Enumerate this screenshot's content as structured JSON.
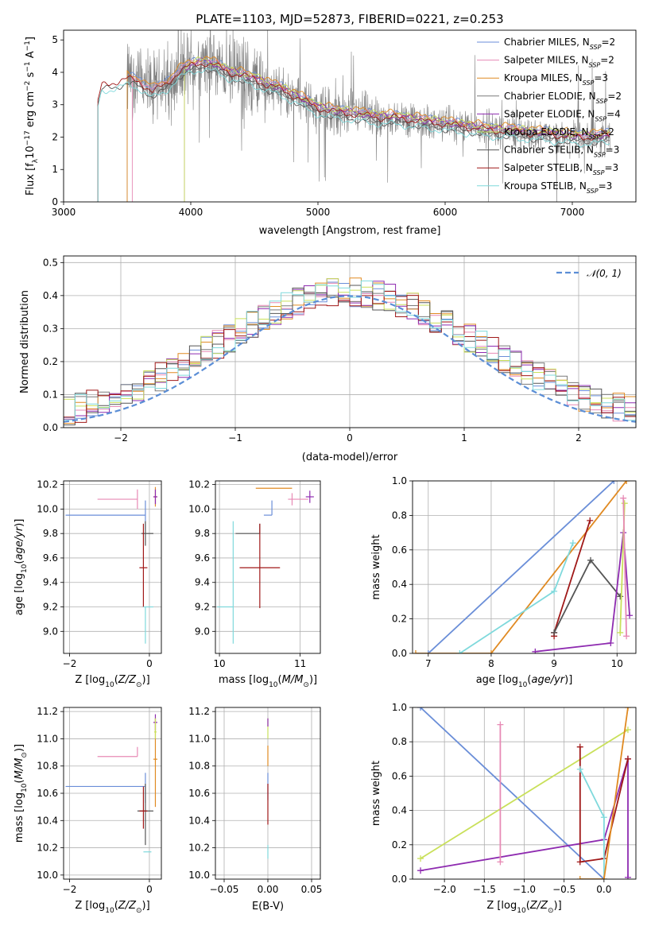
{
  "figure_title": "PLATE=1103, MJD=52873, FIBERID=0221, z=0.253",
  "colors": {
    "chabrier_miles": "#6a8ed8",
    "salpeter_miles": "#e78ab5",
    "kroupa_miles": "#e08a22",
    "chabrier_elodie": "#7a7a7a",
    "salpeter_elodie": "#8e2bb0",
    "kroupa_elodie": "#c9e05a",
    "chabrier_stelib": "#555555",
    "salpeter_stelib": "#a01818",
    "kroupa_stelib": "#7fd9dc",
    "data": "#808080",
    "normal_curve": "#5b8ed6"
  },
  "chart_data": [
    {
      "id": "spectrum",
      "type": "line",
      "xlabel": "wavelength [Angstrom, rest frame]",
      "ylabel": "Flux [f_λ 10^-17 erg cm^-2 s^-1 A^-1]",
      "xlim": [
        3000,
        7500
      ],
      "ylim": [
        0,
        5.3
      ],
      "xticks": [
        3000,
        4000,
        5000,
        6000,
        7000
      ],
      "yticks": [
        0,
        1,
        2,
        3,
        4,
        5
      ],
      "grid": false,
      "legend_position": "top-right",
      "legend": [
        {
          "label": "Chabrier MILES, N",
          "sub": "SSP",
          "suffix": "=2",
          "color_key": "chabrier_miles"
        },
        {
          "label": "Salpeter MILES, N",
          "sub": "SSP",
          "suffix": "=2",
          "color_key": "salpeter_miles"
        },
        {
          "label": "Kroupa MILES, N",
          "sub": "SSP",
          "suffix": "=3",
          "color_key": "kroupa_miles"
        },
        {
          "label": "Chabrier ELODIE, N",
          "sub": "SSP",
          "suffix": "=2",
          "color_key": "chabrier_elodie"
        },
        {
          "label": "Salpeter ELODIE, N",
          "sub": "SSP",
          "suffix": "=4",
          "color_key": "salpeter_elodie"
        },
        {
          "label": "Kroupa ELODIE, N",
          "sub": "SSP",
          "suffix": "=2",
          "color_key": "kroupa_elodie"
        },
        {
          "label": "Chabrier STELIB, N",
          "sub": "SSP",
          "suffix": "=3",
          "color_key": "chabrier_stelib"
        },
        {
          "label": "Salpeter STELIB, N",
          "sub": "SSP",
          "suffix": "=3",
          "color_key": "salpeter_stelib"
        },
        {
          "label": "Kroupa STELIB, N",
          "sub": "SSP",
          "suffix": "=3",
          "color_key": "kroupa_stelib"
        }
      ],
      "model_continuum": {
        "x": [
          3270,
          3300,
          3400,
          3500,
          3600,
          3700,
          3800,
          3900,
          4000,
          4100,
          4200,
          4300,
          4400,
          4500,
          4600,
          4700,
          4800,
          4900,
          5000,
          5100,
          5200,
          5300,
          5400,
          5500,
          5600,
          5700,
          5800,
          5900,
          6000,
          6100,
          6200,
          6300,
          6400,
          6500,
          6600,
          6700,
          6800,
          6900,
          7000,
          7100,
          7200,
          7300
        ],
        "y": [
          3.1,
          3.6,
          3.7,
          3.8,
          3.7,
          3.4,
          3.6,
          4.0,
          4.2,
          4.3,
          4.2,
          4.0,
          3.9,
          3.8,
          3.6,
          3.5,
          3.3,
          3.1,
          2.9,
          2.8,
          2.75,
          2.7,
          2.65,
          2.6,
          2.6,
          2.55,
          2.5,
          2.45,
          2.4,
          2.35,
          2.3,
          2.25,
          2.2,
          2.2,
          2.15,
          2.1,
          2.1,
          2.05,
          2.0,
          2.0,
          2.0,
          2.05
        ]
      },
      "data_noisy_range": [
        3500,
        7300
      ]
    },
    {
      "id": "residuals",
      "type": "bar",
      "xlabel": "(data-model)/error",
      "ylabel": "Normed distribution",
      "xlim": [
        -2.5,
        2.5
      ],
      "ylim": [
        0,
        0.52
      ],
      "xticks": [
        -2,
        -1,
        0,
        1,
        2
      ],
      "yticks": [
        0.0,
        0.1,
        0.2,
        0.3,
        0.4,
        0.5
      ],
      "grid": true,
      "legend_position": "top-right",
      "legend": [
        {
          "label": "𝒩(0, 1)",
          "color_key": "normal_curve",
          "style": "dashed"
        }
      ],
      "bin_width": 0.1
    },
    {
      "id": "age_vs_Z",
      "type": "scatter",
      "xlabel": "Z [log10(Z/Z⊙)]",
      "ylabel": "age [log10(age/yr)]",
      "xlim": [
        -2.15,
        0.3
      ],
      "ylim": [
        8.82,
        10.23
      ],
      "xticks": [
        -2,
        0
      ],
      "yticks": [
        9.0,
        9.2,
        9.4,
        9.6,
        9.8,
        10.0,
        10.2
      ],
      "grid": true,
      "points": [
        {
          "color_key": "chabrier_miles",
          "x": -0.1,
          "y": 9.95,
          "xerr": [
            2.0,
            0
          ],
          "yerr": [
            0.12,
            0.12
          ]
        },
        {
          "color_key": "salpeter_miles",
          "x": -0.3,
          "y": 10.08,
          "xerr": [
            1.0,
            0
          ],
          "yerr": [
            0.08,
            0.08
          ]
        },
        {
          "color_key": "kroupa_miles",
          "x": 0.15,
          "y": 10.1,
          "xerr": [
            0.05,
            0.05
          ],
          "yerr": [
            0.08,
            0.08
          ]
        },
        {
          "color_key": "chabrier_stelib",
          "x": -0.1,
          "y": 9.8,
          "xerr": [
            0.1,
            0.2
          ],
          "yerr": [
            0.1,
            0.1
          ]
        },
        {
          "color_key": "salpeter_stelib",
          "x": -0.15,
          "y": 9.52,
          "xerr": [
            0.1,
            0.1
          ],
          "yerr": [
            0.32,
            0.36
          ]
        },
        {
          "color_key": "kroupa_stelib",
          "x": -0.1,
          "y": 9.2,
          "xerr": [
            0.05,
            0.2
          ],
          "yerr": [
            0.3,
            0.0
          ]
        },
        {
          "color_key": "salpeter_elodie",
          "x": 0.15,
          "y": 10.1,
          "xerr": [
            0.05,
            0.05
          ],
          "yerr": [
            0.06,
            0.06
          ]
        }
      ]
    },
    {
      "id": "age_vs_mass",
      "type": "scatter",
      "xlabel": "mass [log10(M/M⊙)]",
      "ylabel": "",
      "xlim": [
        9.95,
        11.25
      ],
      "ylim": [
        8.82,
        10.23
      ],
      "xticks": [
        10,
        11
      ],
      "yticks": [
        9.0,
        9.2,
        9.4,
        9.6,
        9.8,
        10.0,
        10.2
      ],
      "grid": true,
      "points": [
        {
          "color_key": "chabrier_miles",
          "x": 10.65,
          "y": 9.95,
          "xerr": [
            0.1,
            0.0
          ],
          "yerr": [
            0.0,
            0.12
          ]
        },
        {
          "color_key": "salpeter_miles",
          "x": 10.9,
          "y": 10.08,
          "xerr": [
            0.05,
            0.2
          ],
          "yerr": [
            0.05,
            0.05
          ]
        },
        {
          "color_key": "kroupa_miles",
          "x": 10.85,
          "y": 10.17,
          "xerr": [
            0.4,
            0.05
          ],
          "yerr": [
            0.0,
            0.0
          ]
        },
        {
          "color_key": "chabrier_stelib",
          "x": 10.5,
          "y": 9.8,
          "xerr": [
            0.3,
            0.0
          ],
          "yerr": [
            0.0,
            0.08
          ]
        },
        {
          "color_key": "salpeter_stelib",
          "x": 10.5,
          "y": 9.52,
          "xerr": [
            0.25,
            0.25
          ],
          "yerr": [
            0.33,
            0.36
          ]
        },
        {
          "color_key": "kroupa_stelib",
          "x": 10.17,
          "y": 9.2,
          "xerr": [
            0.2,
            0.0
          ],
          "yerr": [
            0.3,
            0.7
          ]
        },
        {
          "color_key": "salpeter_elodie",
          "x": 11.12,
          "y": 10.1,
          "xerr": [
            0.05,
            0.05
          ],
          "yerr": [
            0.05,
            0.05
          ]
        }
      ]
    },
    {
      "id": "massweight_vs_age",
      "type": "line",
      "xlabel": "age [log10(age/yr)]",
      "ylabel": "mass weight",
      "xlim": [
        6.75,
        10.3
      ],
      "ylim": [
        0.0,
        1.0
      ],
      "xticks": [
        7,
        8,
        9,
        10
      ],
      "yticks": [
        0.0,
        0.2,
        0.4,
        0.6,
        0.8,
        1.0
      ],
      "grid": true,
      "series": [
        {
          "color_key": "chabrier_miles",
          "x": [
            7.0,
            9.95
          ],
          "y": [
            0.0,
            1.0
          ]
        },
        {
          "color_key": "kroupa_miles",
          "x": [
            6.8,
            8.0,
            10.15
          ],
          "y": [
            0.0,
            0.0,
            1.0
          ]
        },
        {
          "color_key": "kroupa_stelib",
          "x": [
            7.5,
            9.0,
            9.3
          ],
          "y": [
            0.0,
            0.36,
            0.64
          ]
        },
        {
          "color_key": "salpeter_stelib",
          "x": [
            9.0,
            9.0,
            9.57
          ],
          "y": [
            0.1,
            0.12,
            0.77
          ]
        },
        {
          "color_key": "chabrier_stelib",
          "x": [
            9.0,
            9.58,
            10.05
          ],
          "y": [
            0.12,
            0.54,
            0.33
          ]
        },
        {
          "color_key": "salpeter_elodie",
          "x": [
            8.7,
            9.9,
            10.1,
            10.2
          ],
          "y": [
            0.01,
            0.06,
            0.7,
            0.22
          ]
        },
        {
          "color_key": "kroupa_elodie",
          "x": [
            10.05,
            10.12
          ],
          "y": [
            0.12,
            0.87
          ]
        },
        {
          "color_key": "salpeter_miles",
          "x": [
            10.1,
            10.15
          ],
          "y": [
            0.9,
            0.1
          ]
        }
      ]
    },
    {
      "id": "mass_vs_Z",
      "type": "scatter",
      "xlabel": "Z [log10(Z/Z⊙)]",
      "ylabel": "mass [log10(M/M⊙)]",
      "xlim": [
        -2.15,
        0.3
      ],
      "ylim": [
        9.97,
        11.23
      ],
      "xticks": [
        -2,
        0
      ],
      "yticks": [
        10.0,
        10.2,
        10.4,
        10.6,
        10.8,
        11.0,
        11.2
      ],
      "grid": true,
      "points": [
        {
          "color_key": "chabrier_miles",
          "x": -0.1,
          "y": 10.65,
          "xerr": [
            2.0,
            0.0
          ],
          "yerr": [
            0.12,
            0.1
          ]
        },
        {
          "color_key": "salpeter_miles",
          "x": -0.3,
          "y": 10.87,
          "xerr": [
            1.0,
            0.0
          ],
          "yerr": [
            0.0,
            0.07
          ]
        },
        {
          "color_key": "kroupa_miles",
          "x": 0.15,
          "y": 10.85,
          "xerr": [
            0.05,
            0.05
          ],
          "yerr": [
            0.35,
            0.3
          ]
        },
        {
          "color_key": "chabrier_stelib",
          "x": -0.1,
          "y": 10.47,
          "xerr": [
            0.2,
            0.2
          ],
          "yerr": [
            0.25,
            0.2
          ]
        },
        {
          "color_key": "salpeter_stelib",
          "x": -0.15,
          "y": 10.47,
          "xerr": [
            0.1,
            0.1
          ],
          "yerr": [
            0.13,
            0.18
          ]
        },
        {
          "color_key": "kroupa_stelib",
          "x": -0.1,
          "y": 10.17,
          "xerr": [
            0.05,
            0.15
          ],
          "yerr": [
            0.0,
            0.0
          ]
        },
        {
          "color_key": "salpeter_elodie",
          "x": 0.15,
          "y": 11.12,
          "xerr": [
            0.05,
            0.05
          ],
          "yerr": [
            0.06,
            0.06
          ]
        },
        {
          "color_key": "kroupa_elodie",
          "x": 0.15,
          "y": 11.05,
          "xerr": [
            0.03,
            0.03
          ],
          "yerr": [
            0.05,
            0.1
          ]
        }
      ]
    },
    {
      "id": "mass_vs_ebv",
      "type": "scatter",
      "xlabel": "E(B-V)",
      "ylabel": "",
      "xlim": [
        -0.06,
        0.06
      ],
      "ylim": [
        9.97,
        11.23
      ],
      "xticks": [
        -0.05,
        0.0,
        0.05
      ],
      "xticklabels": [
        "−0.05",
        "0.00",
        "0.05"
      ],
      "yticks": [
        10.0,
        10.2,
        10.4,
        10.6,
        10.8,
        11.0,
        11.2
      ],
      "grid": true,
      "points": [
        {
          "color_key": "kroupa_stelib",
          "x": 0.0,
          "y": 10.17,
          "xerr": [
            0,
            0
          ],
          "yerr": [
            0.05,
            0.05
          ]
        },
        {
          "color_key": "chabrier_miles",
          "x": 0.0,
          "y": 10.65,
          "xerr": [
            0,
            0
          ],
          "yerr": [
            0.1,
            0.1
          ]
        },
        {
          "color_key": "salpeter_stelib",
          "x": 0.0,
          "y": 10.47,
          "xerr": [
            0,
            0
          ],
          "yerr": [
            0.1,
            0.2
          ]
        },
        {
          "color_key": "kroupa_miles",
          "x": 0.0,
          "y": 10.85,
          "xerr": [
            0,
            0
          ],
          "yerr": [
            0.05,
            0.1
          ]
        },
        {
          "color_key": "kroupa_elodie",
          "x": 0.0,
          "y": 11.05,
          "xerr": [
            0,
            0
          ],
          "yerr": [
            0.05,
            0.1
          ]
        },
        {
          "color_key": "salpeter_elodie",
          "x": 0.0,
          "y": 11.12,
          "xerr": [
            0,
            0
          ],
          "yerr": [
            0.03,
            0.03
          ]
        }
      ]
    },
    {
      "id": "massweight_vs_Z",
      "type": "line",
      "xlabel": "Z [log10(Z/Z⊙)]",
      "ylabel": "mass weight",
      "xlim": [
        -2.4,
        0.4
      ],
      "ylim": [
        0.0,
        1.0
      ],
      "xticks": [
        -2.0,
        -1.5,
        -1.0,
        -0.5,
        0.0
      ],
      "xticklabels": [
        "−2.0",
        "−1.5",
        "−1.0",
        "−0.5",
        "0.0"
      ],
      "yticks": [
        0.0,
        0.2,
        0.4,
        0.6,
        0.8,
        1.0
      ],
      "grid": true,
      "series": [
        {
          "color_key": "chabrier_miles",
          "x": [
            -2.3,
            0.0
          ],
          "y": [
            1.0,
            0.0
          ]
        },
        {
          "color_key": "kroupa_elodie",
          "x": [
            -2.3,
            0.3
          ],
          "y": [
            0.12,
            0.87
          ]
        },
        {
          "color_key": "salpeter_elodie",
          "x": [
            -2.3,
            0.0,
            0.3,
            0.3
          ],
          "y": [
            0.05,
            0.23,
            0.7,
            0.01
          ]
        },
        {
          "color_key": "salpeter_miles",
          "x": [
            -1.3,
            -1.3
          ],
          "y": [
            0.9,
            0.1
          ]
        },
        {
          "color_key": "salpeter_stelib",
          "x": [
            -0.3,
            -0.3,
            0.0,
            0.3
          ],
          "y": [
            0.77,
            0.1,
            0.12,
            0.7
          ]
        },
        {
          "color_key": "kroupa_stelib",
          "x": [
            -0.3,
            0.0,
            0.0
          ],
          "y": [
            0.64,
            0.36,
            0.0
          ]
        },
        {
          "color_key": "kroupa_miles",
          "x": [
            -0.3,
            0.0,
            0.3
          ],
          "y": [
            0.0,
            0.0,
            1.0
          ]
        }
      ]
    }
  ]
}
